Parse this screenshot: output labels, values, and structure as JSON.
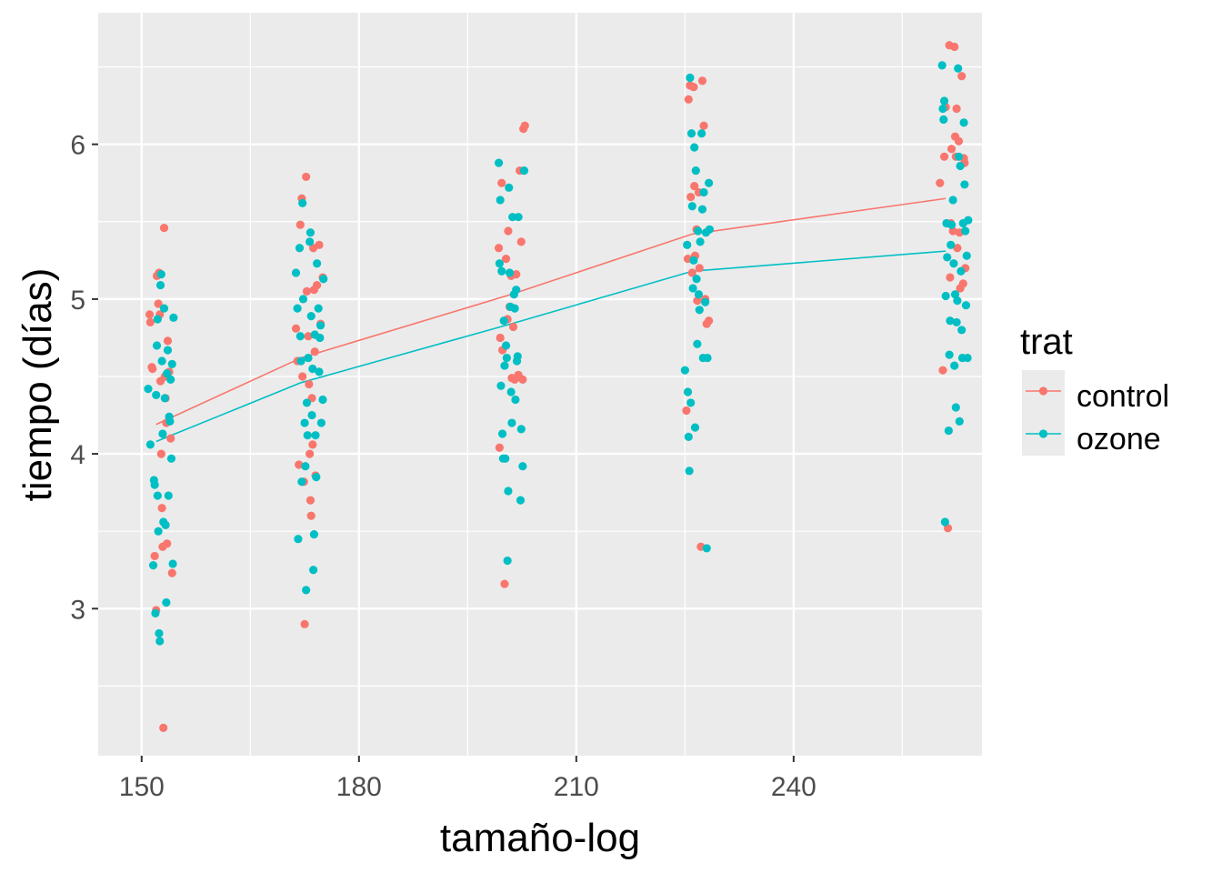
{
  "chart_data": {
    "type": "scatter",
    "xlabel": "tamaño-log",
    "ylabel": "tiempo (días)",
    "xlim": [
      144,
      266
    ],
    "ylim": [
      2.05,
      6.85
    ],
    "x_ticks": [
      150,
      180,
      210,
      240
    ],
    "y_ticks": [
      3,
      4,
      5,
      6
    ],
    "grid": true,
    "legend": {
      "title": "trat",
      "position": "right",
      "entries": [
        "control",
        "ozone"
      ]
    },
    "colors": {
      "control": "#F8766D",
      "ozone": "#00BFC4",
      "panel": "#EBEBEB",
      "grid": "#FFFFFF"
    },
    "line_x": [
      152,
      172,
      201,
      226,
      261
    ],
    "series": [
      {
        "name": "control",
        "line_y": [
          4.19,
          4.62,
          5.03,
          5.42,
          5.65
        ],
        "points": [
          [
            151.1,
            4.9
          ],
          [
            151.2,
            4.85
          ],
          [
            151.4,
            4.56
          ],
          [
            151.5,
            4.55
          ],
          [
            151.8,
            3.34
          ],
          [
            152.0,
            2.99
          ],
          [
            152.1,
            5.15
          ],
          [
            152.3,
            4.97
          ],
          [
            152.4,
            5.17
          ],
          [
            152.5,
            4.9
          ],
          [
            152.6,
            4.47
          ],
          [
            152.7,
            4.0
          ],
          [
            152.8,
            3.65
          ],
          [
            152.9,
            3.4
          ],
          [
            153.0,
            2.23
          ],
          [
            153.1,
            5.46
          ],
          [
            153.2,
            4.5
          ],
          [
            153.3,
            4.36
          ],
          [
            153.4,
            4.2
          ],
          [
            153.5,
            3.42
          ],
          [
            153.6,
            4.73
          ],
          [
            153.8,
            4.53
          ],
          [
            154.0,
            4.1
          ],
          [
            154.2,
            3.23
          ],
          [
            171.3,
            4.81
          ],
          [
            171.5,
            4.6
          ],
          [
            171.7,
            3.93
          ],
          [
            171.9,
            5.48
          ],
          [
            172.1,
            5.65
          ],
          [
            172.2,
            4.5
          ],
          [
            172.4,
            3.82
          ],
          [
            172.5,
            2.9
          ],
          [
            172.7,
            5.79
          ],
          [
            172.8,
            5.05
          ],
          [
            173.0,
            4.76
          ],
          [
            173.1,
            4.45
          ],
          [
            173.2,
            4.0
          ],
          [
            173.3,
            3.7
          ],
          [
            173.4,
            3.6
          ],
          [
            173.5,
            4.36
          ],
          [
            173.6,
            4.06
          ],
          [
            173.7,
            5.33
          ],
          [
            173.8,
            5.06
          ],
          [
            173.9,
            4.66
          ],
          [
            174.0,
            3.86
          ],
          [
            174.2,
            5.09
          ],
          [
            174.5,
            5.35
          ],
          [
            174.7,
            4.84
          ],
          [
            175.0,
            5.14
          ],
          [
            199.3,
            5.33
          ],
          [
            199.4,
            4.04
          ],
          [
            199.5,
            4.75
          ],
          [
            199.7,
            5.75
          ],
          [
            199.8,
            4.67
          ],
          [
            200.1,
            3.16
          ],
          [
            200.3,
            5.26
          ],
          [
            200.5,
            4.87
          ],
          [
            200.6,
            5.44
          ],
          [
            200.8,
            4.95
          ],
          [
            201.0,
            5.15
          ],
          [
            201.1,
            4.49
          ],
          [
            201.3,
            4.82
          ],
          [
            201.5,
            4.48
          ],
          [
            201.7,
            5.16
          ],
          [
            202.0,
            4.51
          ],
          [
            202.2,
            5.83
          ],
          [
            202.4,
            5.37
          ],
          [
            202.6,
            4.48
          ],
          [
            202.7,
            6.1
          ],
          [
            202.9,
            6.12
          ],
          [
            225.2,
            4.28
          ],
          [
            225.4,
            5.26
          ],
          [
            225.5,
            6.29
          ],
          [
            225.7,
            6.38
          ],
          [
            225.8,
            5.66
          ],
          [
            226.0,
            5.17
          ],
          [
            226.2,
            6.37
          ],
          [
            226.3,
            5.73
          ],
          [
            226.4,
            5.28
          ],
          [
            226.6,
            5.45
          ],
          [
            226.7,
            4.99
          ],
          [
            226.9,
            5.69
          ],
          [
            227.0,
            5.2
          ],
          [
            227.2,
            3.4
          ],
          [
            227.4,
            6.41
          ],
          [
            227.6,
            6.12
          ],
          [
            227.8,
            5.0
          ],
          [
            228.0,
            4.84
          ],
          [
            228.3,
            4.86
          ],
          [
            260.2,
            5.75
          ],
          [
            260.6,
            4.54
          ],
          [
            260.8,
            5.92
          ],
          [
            261.0,
            6.24
          ],
          [
            261.3,
            3.52
          ],
          [
            261.5,
            6.64
          ],
          [
            261.6,
            5.14
          ],
          [
            261.7,
            5.49
          ],
          [
            261.8,
            5.97
          ],
          [
            262.0,
            5.44
          ],
          [
            262.2,
            6.63
          ],
          [
            262.3,
            6.05
          ],
          [
            262.4,
            5.92
          ],
          [
            262.5,
            6.23
          ],
          [
            262.6,
            5.33
          ],
          [
            262.8,
            6.02
          ],
          [
            262.9,
            5.43
          ],
          [
            263.0,
            5.07
          ],
          [
            263.2,
            6.44
          ],
          [
            263.4,
            5.1
          ],
          [
            263.5,
            5.91
          ],
          [
            263.6,
            5.88
          ],
          [
            263.7,
            5.2
          ]
        ]
      },
      {
        "name": "ozone",
        "line_y": [
          4.08,
          4.46,
          4.84,
          5.18,
          5.31
        ],
        "points": [
          [
            150.9,
            4.42
          ],
          [
            151.2,
            4.06
          ],
          [
            151.6,
            3.28
          ],
          [
            151.7,
            3.83
          ],
          [
            151.8,
            3.8
          ],
          [
            151.9,
            2.97
          ],
          [
            152.0,
            4.38
          ],
          [
            152.1,
            4.7
          ],
          [
            152.2,
            4.87
          ],
          [
            152.2,
            3.73
          ],
          [
            152.3,
            3.5
          ],
          [
            152.4,
            2.84
          ],
          [
            152.5,
            2.79
          ],
          [
            152.6,
            5.09
          ],
          [
            152.7,
            5.16
          ],
          [
            152.8,
            4.6
          ],
          [
            152.9,
            4.13
          ],
          [
            153.0,
            3.56
          ],
          [
            153.1,
            4.94
          ],
          [
            153.2,
            4.36
          ],
          [
            153.3,
            3.54
          ],
          [
            153.4,
            3.04
          ],
          [
            153.5,
            4.52
          ],
          [
            153.6,
            4.67
          ],
          [
            153.7,
            3.73
          ],
          [
            153.8,
            4.24
          ],
          [
            153.9,
            4.21
          ],
          [
            154.0,
            4.48
          ],
          [
            154.1,
            3.97
          ],
          [
            154.2,
            4.58
          ],
          [
            154.3,
            3.29
          ],
          [
            154.4,
            4.88
          ],
          [
            171.3,
            5.17
          ],
          [
            171.5,
            4.94
          ],
          [
            171.6,
            3.45
          ],
          [
            171.8,
            5.33
          ],
          [
            171.9,
            4.76
          ],
          [
            172.0,
            4.6
          ],
          [
            172.1,
            3.82
          ],
          [
            172.2,
            5.62
          ],
          [
            172.3,
            5.0
          ],
          [
            172.5,
            4.2
          ],
          [
            172.6,
            3.92
          ],
          [
            172.7,
            3.12
          ],
          [
            172.8,
            4.33
          ],
          [
            172.9,
            4.12
          ],
          [
            173.0,
            4.62
          ],
          [
            173.2,
            5.37
          ],
          [
            173.3,
            5.43
          ],
          [
            173.4,
            4.89
          ],
          [
            173.5,
            4.25
          ],
          [
            173.6,
            4.55
          ],
          [
            173.7,
            3.25
          ],
          [
            173.8,
            3.48
          ],
          [
            173.9,
            4.77
          ],
          [
            174.0,
            4.12
          ],
          [
            174.1,
            3.85
          ],
          [
            174.2,
            5.23
          ],
          [
            174.4,
            4.94
          ],
          [
            174.5,
            4.53
          ],
          [
            174.6,
            4.75
          ],
          [
            174.7,
            4.83
          ],
          [
            174.8,
            4.2
          ],
          [
            175.0,
            4.35
          ],
          [
            175.1,
            5.13
          ],
          [
            199.3,
            5.88
          ],
          [
            199.4,
            5.23
          ],
          [
            199.5,
            5.64
          ],
          [
            199.6,
            4.44
          ],
          [
            199.7,
            5.18
          ],
          [
            199.8,
            4.13
          ],
          [
            199.9,
            3.97
          ],
          [
            200.0,
            4.86
          ],
          [
            200.1,
            4.57
          ],
          [
            200.2,
            3.97
          ],
          [
            200.3,
            4.7
          ],
          [
            200.4,
            4.62
          ],
          [
            200.5,
            3.31
          ],
          [
            200.6,
            3.76
          ],
          [
            200.7,
            5.72
          ],
          [
            200.8,
            5.17
          ],
          [
            200.9,
            4.95
          ],
          [
            201.0,
            4.4
          ],
          [
            201.1,
            4.2
          ],
          [
            201.2,
            5.53
          ],
          [
            201.4,
            5.03
          ],
          [
            201.5,
            4.94
          ],
          [
            201.6,
            4.35
          ],
          [
            201.7,
            5.06
          ],
          [
            201.8,
            4.6
          ],
          [
            201.9,
            4.63
          ],
          [
            202.0,
            5.53
          ],
          [
            202.3,
            3.7
          ],
          [
            202.4,
            4.16
          ],
          [
            202.6,
            3.92
          ],
          [
            202.8,
            5.83
          ],
          [
            225.0,
            4.54
          ],
          [
            225.3,
            5.35
          ],
          [
            225.4,
            4.4
          ],
          [
            225.5,
            4.11
          ],
          [
            225.6,
            3.89
          ],
          [
            225.7,
            6.43
          ],
          [
            225.8,
            4.33
          ],
          [
            225.9,
            6.07
          ],
          [
            226.0,
            5.6
          ],
          [
            226.1,
            5.07
          ],
          [
            226.2,
            5.25
          ],
          [
            226.3,
            5.98
          ],
          [
            226.4,
            4.17
          ],
          [
            226.5,
            5.83
          ],
          [
            226.6,
            5.13
          ],
          [
            226.7,
            4.71
          ],
          [
            226.8,
            5.44
          ],
          [
            226.9,
            5.03
          ],
          [
            227.0,
            4.93
          ],
          [
            227.1,
            5.37
          ],
          [
            227.3,
            6.07
          ],
          [
            227.4,
            5.58
          ],
          [
            227.5,
            4.62
          ],
          [
            227.6,
            5.69
          ],
          [
            227.8,
            4.98
          ],
          [
            227.9,
            5.43
          ],
          [
            228.0,
            3.39
          ],
          [
            228.1,
            4.62
          ],
          [
            228.3,
            5.75
          ],
          [
            228.4,
            5.45
          ],
          [
            260.5,
            6.51
          ],
          [
            260.6,
            6.23
          ],
          [
            260.7,
            6.16
          ],
          [
            260.8,
            6.28
          ],
          [
            260.9,
            3.56
          ],
          [
            261.0,
            5.02
          ],
          [
            261.1,
            5.49
          ],
          [
            261.2,
            5.27
          ],
          [
            261.4,
            4.15
          ],
          [
            261.5,
            4.64
          ],
          [
            261.6,
            4.86
          ],
          [
            261.7,
            5.35
          ],
          [
            261.8,
            5.48
          ],
          [
            262.0,
            5.64
          ],
          [
            262.1,
            5.23
          ],
          [
            262.2,
            4.57
          ],
          [
            262.3,
            5.03
          ],
          [
            262.4,
            4.3
          ],
          [
            262.5,
            4.85
          ],
          [
            262.6,
            4.99
          ],
          [
            262.7,
            6.49
          ],
          [
            262.8,
            5.92
          ],
          [
            262.9,
            4.21
          ],
          [
            263.0,
            5.86
          ],
          [
            263.1,
            5.18
          ],
          [
            263.2,
            4.8
          ],
          [
            263.3,
            4.62
          ],
          [
            263.4,
            5.49
          ],
          [
            263.5,
            6.14
          ],
          [
            263.6,
            5.74
          ],
          [
            263.7,
            5.44
          ],
          [
            263.8,
            4.96
          ],
          [
            263.9,
            5.28
          ],
          [
            264.0,
            4.62
          ],
          [
            264.1,
            5.51
          ]
        ]
      }
    ]
  }
}
